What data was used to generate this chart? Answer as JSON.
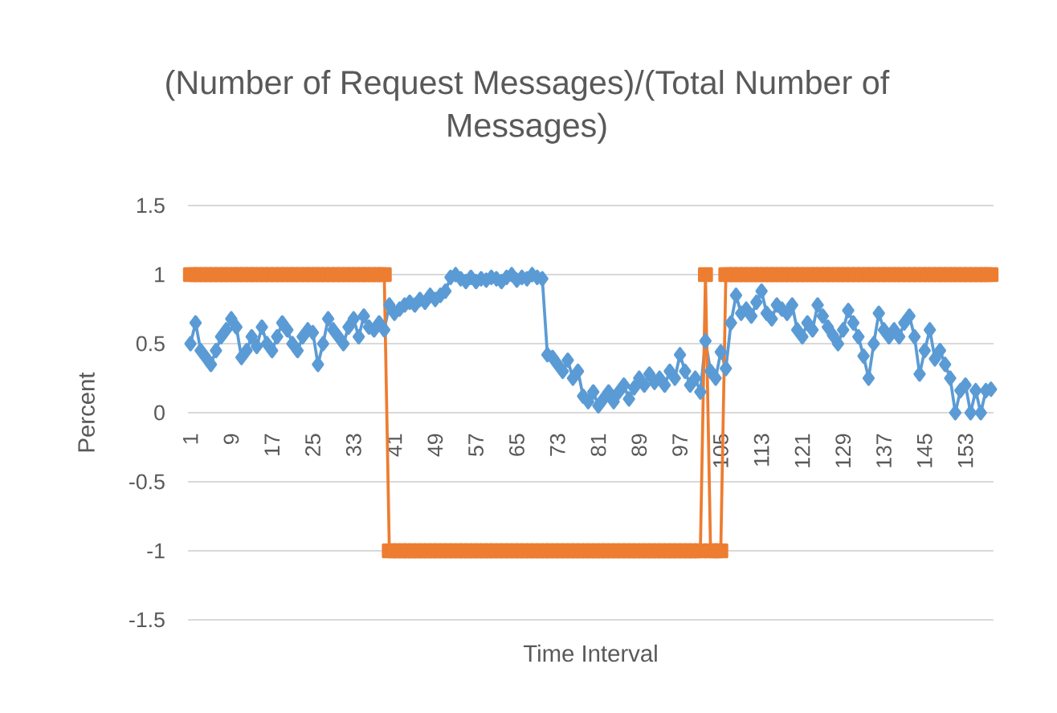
{
  "chart_data": {
    "type": "line",
    "title": "(Number of Request Messages)/(Total Number of Messages)",
    "xlabel": "Time Interval",
    "ylabel": "Percent",
    "categories": [
      "1",
      null,
      null,
      null,
      null,
      null,
      null,
      null,
      "9",
      null,
      null,
      null,
      null,
      null,
      null,
      null,
      "17",
      null,
      null,
      null,
      null,
      null,
      null,
      null,
      "25",
      null,
      null,
      null,
      null,
      null,
      null,
      null,
      "33",
      null,
      null,
      null,
      null,
      null,
      null,
      null,
      "41",
      null,
      null,
      null,
      null,
      null,
      null,
      null,
      "49",
      null,
      null,
      null,
      null,
      null,
      null,
      null,
      "57",
      null,
      null,
      null,
      null,
      null,
      null,
      null,
      "65",
      null,
      null,
      null,
      null,
      null,
      null,
      null,
      "73",
      null,
      null,
      null,
      null,
      null,
      null,
      null,
      "81",
      null,
      null,
      null,
      null,
      null,
      null,
      null,
      "89",
      null,
      null,
      null,
      null,
      null,
      null,
      null,
      "97",
      null,
      null,
      null,
      null,
      null,
      null,
      null,
      "105",
      null,
      null,
      null,
      null,
      null,
      null,
      null,
      "113",
      null,
      null,
      null,
      null,
      null,
      null,
      null,
      "121",
      null,
      null,
      null,
      null,
      null,
      null,
      null,
      "129",
      null,
      null,
      null,
      null,
      null,
      null,
      null,
      "137",
      null,
      null,
      null,
      null,
      null,
      null,
      null,
      "145",
      null,
      null,
      null,
      null,
      null,
      null,
      null,
      "153",
      null,
      null,
      null,
      null,
      null
    ],
    "series": [
      {
        "color": "#5b9bd5",
        "marker": "diamond",
        "values": [
          0.5,
          0.65,
          0.45,
          0.4,
          0.35,
          0.45,
          0.55,
          0.6,
          0.68,
          0.62,
          0.4,
          0.45,
          0.55,
          0.48,
          0.62,
          0.5,
          0.45,
          0.55,
          0.65,
          0.6,
          0.5,
          0.45,
          0.55,
          0.6,
          0.58,
          0.35,
          0.5,
          0.68,
          0.6,
          0.55,
          0.5,
          0.62,
          0.68,
          0.55,
          0.7,
          0.62,
          0.6,
          0.65,
          0.6,
          0.78,
          0.72,
          0.75,
          0.78,
          0.8,
          0.78,
          0.82,
          0.8,
          0.85,
          0.82,
          0.85,
          0.88,
          0.98,
          1.0,
          0.97,
          0.95,
          0.98,
          0.95,
          0.97,
          0.96,
          0.98,
          0.97,
          0.95,
          0.98,
          1.0,
          0.96,
          0.98,
          0.97,
          1.0,
          0.98,
          0.97,
          0.42,
          0.4,
          0.35,
          0.3,
          0.38,
          0.25,
          0.3,
          0.12,
          0.08,
          0.15,
          0.05,
          0.1,
          0.15,
          0.08,
          0.15,
          0.2,
          0.1,
          0.18,
          0.25,
          0.2,
          0.28,
          0.22,
          0.25,
          0.2,
          0.3,
          0.25,
          0.42,
          0.3,
          0.2,
          0.25,
          0.15,
          0.52,
          0.3,
          0.25,
          0.44,
          0.32,
          0.65,
          0.85,
          0.72,
          0.75,
          0.7,
          0.8,
          0.88,
          0.72,
          0.68,
          0.78,
          0.75,
          0.72,
          0.78,
          0.6,
          0.55,
          0.65,
          0.6,
          0.78,
          0.7,
          0.62,
          0.56,
          0.5,
          0.6,
          0.74,
          0.65,
          0.55,
          0.41,
          0.25,
          0.5,
          0.72,
          0.6,
          0.55,
          0.6,
          0.55,
          0.65,
          0.7,
          0.55,
          0.28,
          0.45,
          0.6,
          0.39,
          0.45,
          0.35,
          0.25,
          0.0,
          0.16,
          0.2,
          0.0,
          0.16,
          0.0,
          0.16,
          0.17
        ]
      },
      {
        "color": "#ed7d31",
        "marker": "square",
        "values": [
          1,
          1,
          1,
          1,
          1,
          1,
          1,
          1,
          1,
          1,
          1,
          1,
          1,
          1,
          1,
          1,
          1,
          1,
          1,
          1,
          1,
          1,
          1,
          1,
          1,
          1,
          1,
          1,
          1,
          1,
          1,
          1,
          1,
          1,
          1,
          1,
          1,
          1,
          1,
          -1,
          -1,
          -1,
          -1,
          -1,
          -1,
          -1,
          -1,
          -1,
          -1,
          -1,
          -1,
          -1,
          -1,
          -1,
          -1,
          -1,
          -1,
          -1,
          -1,
          -1,
          -1,
          -1,
          -1,
          -1,
          -1,
          -1,
          -1,
          -1,
          -1,
          -1,
          -1,
          -1,
          -1,
          -1,
          -1,
          -1,
          -1,
          -1,
          -1,
          -1,
          -1,
          -1,
          -1,
          -1,
          -1,
          -1,
          -1,
          -1,
          -1,
          -1,
          -1,
          -1,
          -1,
          -1,
          -1,
          -1,
          -1,
          -1,
          -1,
          -1,
          -1,
          1,
          -1,
          -1,
          -1,
          1,
          1,
          1,
          1,
          1,
          1,
          1,
          1,
          1,
          1,
          1,
          1,
          1,
          1,
          1,
          1,
          1,
          1,
          1,
          1,
          1,
          1,
          1,
          1,
          1,
          1,
          1,
          1,
          1,
          1,
          1,
          1,
          1,
          1,
          1,
          1,
          1,
          1,
          1,
          1,
          1,
          1,
          1,
          1,
          1,
          1,
          1,
          1,
          1,
          1,
          1,
          1,
          1
        ]
      }
    ],
    "ylim": [
      -1.5,
      1.5
    ],
    "yticks": [
      -1.5,
      -1,
      -0.5,
      0,
      0.5,
      1,
      1.5
    ],
    "grid": "y"
  }
}
